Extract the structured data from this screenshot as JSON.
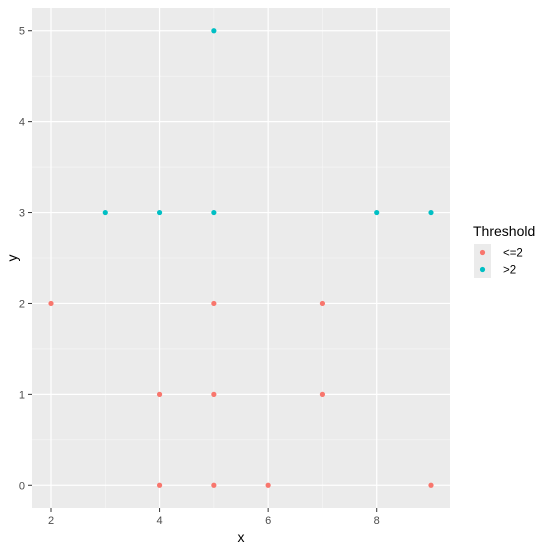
{
  "chart_data": {
    "type": "scatter",
    "xlabel": "x",
    "ylabel": "y",
    "xlim": [
      1.65,
      9.35
    ],
    "ylim": [
      -0.25,
      5.25
    ],
    "x_ticks": [
      2,
      4,
      6,
      8
    ],
    "y_ticks": [
      0,
      1,
      2,
      3,
      4,
      5
    ],
    "grid": true,
    "legend": {
      "title": "Threshold",
      "position": "right"
    },
    "series": [
      {
        "name": "<=2",
        "color": "#F8766D",
        "points": [
          {
            "x": 2,
            "y": 2
          },
          {
            "x": 4,
            "y": 1
          },
          {
            "x": 4,
            "y": 0
          },
          {
            "x": 5,
            "y": 2
          },
          {
            "x": 5,
            "y": 1
          },
          {
            "x": 5,
            "y": 0
          },
          {
            "x": 6,
            "y": 0
          },
          {
            "x": 7,
            "y": 2
          },
          {
            "x": 7,
            "y": 1
          },
          {
            "x": 9,
            "y": 0
          }
        ]
      },
      {
        "name": ">2",
        "color": "#00BFC4",
        "points": [
          {
            "x": 3,
            "y": 3
          },
          {
            "x": 4,
            "y": 3
          },
          {
            "x": 5,
            "y": 3
          },
          {
            "x": 5,
            "y": 5
          },
          {
            "x": 8,
            "y": 3
          },
          {
            "x": 9,
            "y": 3
          }
        ]
      }
    ]
  }
}
